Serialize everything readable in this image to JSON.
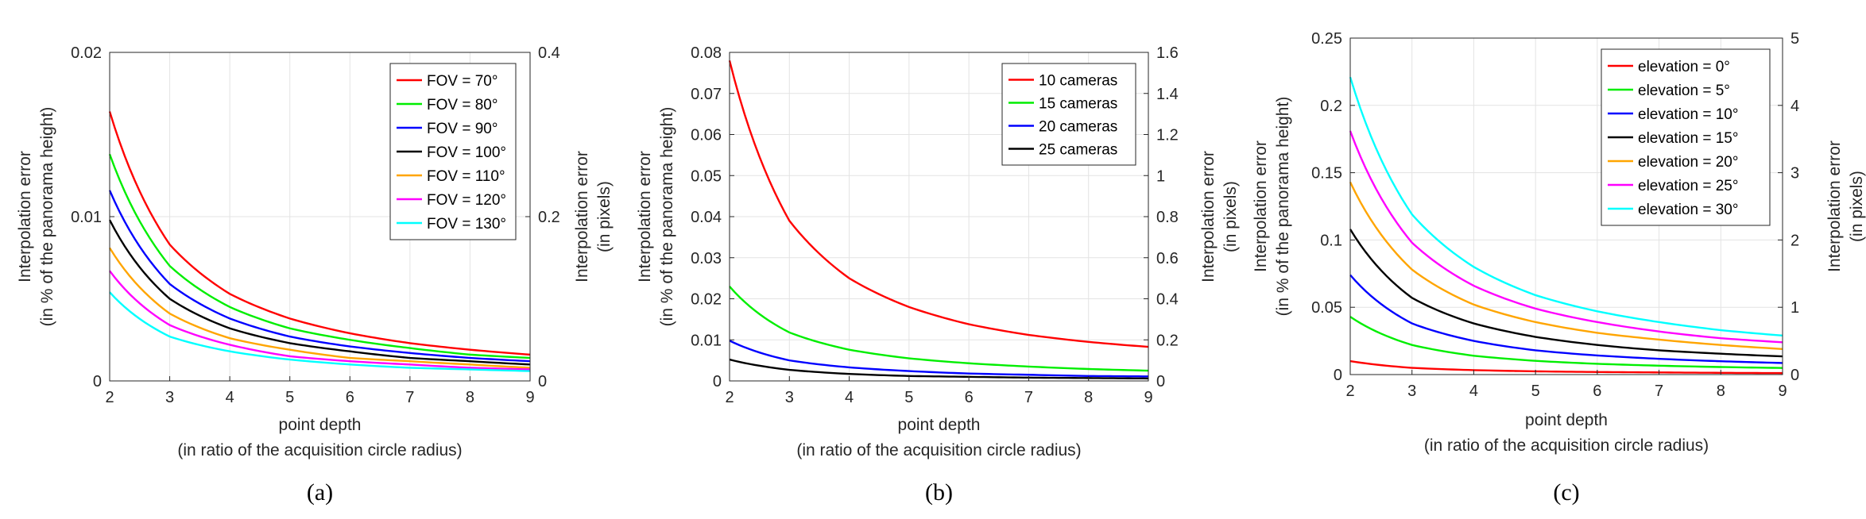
{
  "chart_data": [
    {
      "type": "line",
      "panel_label": "(a)",
      "xlabel": [
        "point depth",
        "(in ratio of the acquisition circle radius)"
      ],
      "ylabel": [
        "Interpolation error",
        "(in % of the panorama height)"
      ],
      "ylabel_right": [
        "Interpolation error",
        "(in pixels)"
      ],
      "xlim": [
        2,
        9
      ],
      "ylim": [
        0,
        0.02
      ],
      "ylim_right": [
        0,
        0.4
      ],
      "xticks": [
        "2",
        "3",
        "4",
        "5",
        "6",
        "7",
        "8",
        "9"
      ],
      "yticks": [
        "0",
        "0.01",
        "0.02"
      ],
      "yticks_right": [
        "0",
        "0.2",
        "0.4"
      ],
      "grid": true,
      "legend_position": "top-right",
      "x": [
        2,
        3,
        4,
        5,
        6,
        7,
        8,
        9
      ],
      "series": [
        {
          "name": "FOV = 70°",
          "color": "#ff0000",
          "values": [
            0.0164,
            0.0083,
            0.0053,
            0.0038,
            0.0029,
            0.0023,
            0.0019,
            0.0016
          ]
        },
        {
          "name": "FOV = 80°",
          "color": "#00ee00",
          "values": [
            0.0138,
            0.007,
            0.0045,
            0.0032,
            0.0025,
            0.002,
            0.0016,
            0.0014
          ]
        },
        {
          "name": "FOV = 90°",
          "color": "#0000ff",
          "values": [
            0.0116,
            0.0059,
            0.0038,
            0.0027,
            0.0021,
            0.0017,
            0.0014,
            0.0012
          ]
        },
        {
          "name": "FOV = 100°",
          "color": "#000000",
          "values": [
            0.0098,
            0.005,
            0.0032,
            0.0023,
            0.0018,
            0.0014,
            0.0012,
            0.001
          ]
        },
        {
          "name": "FOV = 110°",
          "color": "#ffa500",
          "values": [
            0.0081,
            0.0041,
            0.0026,
            0.0019,
            0.0014,
            0.0012,
            0.001,
            0.0008
          ]
        },
        {
          "name": "FOV = 120°",
          "color": "#ff00ff",
          "values": [
            0.0067,
            0.0034,
            0.0022,
            0.0015,
            0.0012,
            0.001,
            0.0008,
            0.0007
          ]
        },
        {
          "name": "FOV = 130°",
          "color": "#00ffff",
          "values": [
            0.0054,
            0.0027,
            0.0018,
            0.0013,
            0.001,
            0.0008,
            0.0007,
            0.0006
          ]
        }
      ]
    },
    {
      "type": "line",
      "panel_label": "(b)",
      "xlabel": [
        "point depth",
        "(in ratio of the acquisition circle radius)"
      ],
      "ylabel": [
        "Interpolation error",
        "(in % of the panorama height)"
      ],
      "ylabel_right": [
        "Interpolation error",
        "(in pixels)"
      ],
      "xlim": [
        2,
        9
      ],
      "ylim": [
        0,
        0.08
      ],
      "ylim_right": [
        0,
        1.6
      ],
      "xticks": [
        "2",
        "3",
        "4",
        "5",
        "6",
        "7",
        "8",
        "9"
      ],
      "yticks": [
        "0",
        "0.01",
        "0.02",
        "0.03",
        "0.04",
        "0.05",
        "0.06",
        "0.07",
        "0.08"
      ],
      "yticks_right": [
        "0",
        "0.2",
        "0.4",
        "0.6",
        "0.8",
        "1",
        "1.2",
        "1.4",
        "1.6"
      ],
      "grid": true,
      "legend_position": "top-right",
      "x": [
        2,
        3,
        4,
        5,
        6,
        7,
        8,
        9
      ],
      "series": [
        {
          "name": "10 cameras",
          "color": "#ff0000",
          "values": [
            0.078,
            0.039,
            0.025,
            0.018,
            0.0138,
            0.0112,
            0.0095,
            0.0083
          ]
        },
        {
          "name": "15 cameras",
          "color": "#00ee00",
          "values": [
            0.023,
            0.0118,
            0.0076,
            0.0055,
            0.0043,
            0.0035,
            0.0029,
            0.0025
          ]
        },
        {
          "name": "20 cameras",
          "color": "#0000ff",
          "values": [
            0.0098,
            0.005,
            0.0033,
            0.0024,
            0.0018,
            0.0015,
            0.0012,
            0.0011
          ]
        },
        {
          "name": "25 cameras",
          "color": "#000000",
          "values": [
            0.0052,
            0.0027,
            0.0017,
            0.0012,
            0.001,
            0.0008,
            0.0007,
            0.0006
          ]
        }
      ]
    },
    {
      "type": "line",
      "panel_label": "(c)",
      "xlabel": [
        "point depth",
        "(in ratio of the acquisition circle radius)"
      ],
      "ylabel": [
        "Interpolation error",
        "(in % of the panorama height)"
      ],
      "ylabel_right": [
        "Interpolation error",
        "(in pixels)"
      ],
      "xlim": [
        2,
        9
      ],
      "ylim": [
        0,
        0.25
      ],
      "ylim_right": [
        0,
        5
      ],
      "xticks": [
        "2",
        "3",
        "4",
        "5",
        "6",
        "7",
        "8",
        "9"
      ],
      "yticks": [
        "0",
        "0.05",
        "0.1",
        "0.15",
        "0.2",
        "0.25"
      ],
      "yticks_right": [
        "0",
        "1",
        "2",
        "3",
        "4",
        "5"
      ],
      "grid": true,
      "legend_position": "top-right",
      "x": [
        2,
        3,
        4,
        5,
        6,
        7,
        8,
        9
      ],
      "series": [
        {
          "name": "elevation = 0°",
          "color": "#ff0000",
          "values": [
            0.01,
            0.005,
            0.0033,
            0.0024,
            0.0019,
            0.0016,
            0.0013,
            0.0011
          ]
        },
        {
          "name": "elevation = 5°",
          "color": "#00ee00",
          "values": [
            0.043,
            0.022,
            0.014,
            0.0102,
            0.008,
            0.0066,
            0.0056,
            0.0049
          ]
        },
        {
          "name": "elevation = 10°",
          "color": "#0000ff",
          "values": [
            0.074,
            0.038,
            0.025,
            0.018,
            0.0142,
            0.0117,
            0.0099,
            0.0086
          ]
        },
        {
          "name": "elevation = 15°",
          "color": "#000000",
          "values": [
            0.108,
            0.057,
            0.038,
            0.028,
            0.022,
            0.018,
            0.0155,
            0.0135
          ]
        },
        {
          "name": "elevation = 20°",
          "color": "#ffa500",
          "values": [
            0.143,
            0.078,
            0.052,
            0.039,
            0.031,
            0.026,
            0.022,
            0.019
          ]
        },
        {
          "name": "elevation = 25°",
          "color": "#ff00ff",
          "values": [
            0.181,
            0.098,
            0.066,
            0.049,
            0.039,
            0.032,
            0.027,
            0.024
          ]
        },
        {
          "name": "elevation = 30°",
          "color": "#00ffff",
          "values": [
            0.221,
            0.119,
            0.08,
            0.059,
            0.047,
            0.039,
            0.033,
            0.029
          ]
        }
      ]
    }
  ]
}
